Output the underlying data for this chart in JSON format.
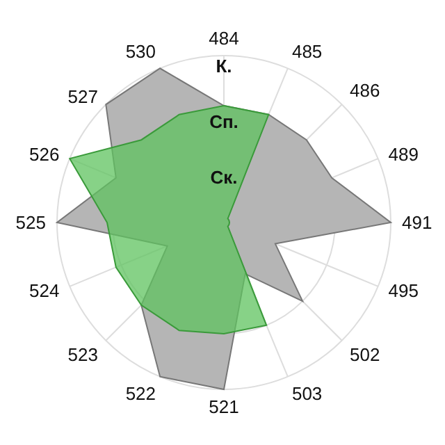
{
  "chart_data": {
    "type": "radar",
    "categories": [
      "484",
      "485",
      "486",
      "489",
      "491",
      "495",
      "502",
      "503",
      "521",
      "522",
      "523",
      "524",
      "525",
      "526",
      "527",
      "530"
    ],
    "ylim": [
      0,
      3
    ],
    "yticks": [
      {
        "value": 1,
        "label": "Ск."
      },
      {
        "value": 2,
        "label": "Сп."
      },
      {
        "value": 3,
        "label": "К."
      }
    ],
    "grid": true,
    "legend": false,
    "marker": "none",
    "series": [
      {
        "color": "#b5b5b5",
        "values": [
          2.1,
          2.1,
          2.1,
          2.1,
          3,
          1,
          2,
          1,
          3,
          3,
          2.1,
          1.1,
          3,
          2.1,
          3,
          3
        ]
      },
      {
        "color": "#5fc35f",
        "values": [
          2.1,
          2.1,
          0.1,
          0.1,
          0.1,
          0.1,
          0.1,
          2,
          2,
          2.1,
          2.1,
          2.1,
          2.1,
          3,
          2.1,
          2.1
        ]
      }
    ]
  }
}
